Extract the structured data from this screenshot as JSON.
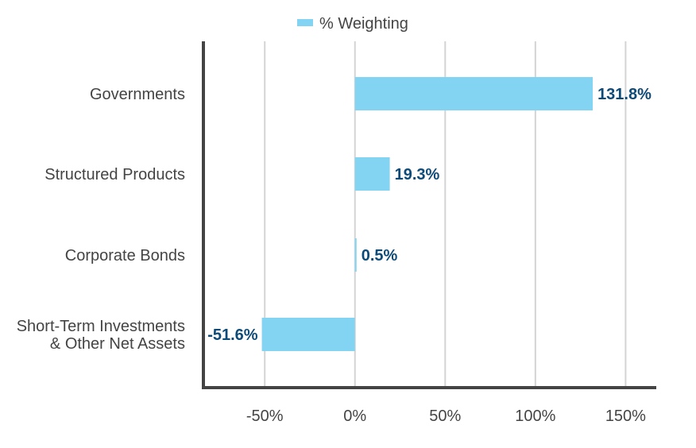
{
  "chart_data": {
    "type": "bar",
    "orientation": "horizontal",
    "categories": [
      [
        "Governments"
      ],
      [
        "Structured Products"
      ],
      [
        "Corporate Bonds"
      ],
      [
        "Short-Term Investments",
        "& Other Net Assets"
      ]
    ],
    "series": [
      {
        "name": "% Weighting",
        "values": [
          131.8,
          19.3,
          0.5,
          -51.6
        ],
        "labels": [
          "131.8%",
          "19.3%",
          "0.5%",
          "-51.6%"
        ]
      }
    ],
    "xticks": [
      -50,
      0,
      50,
      100,
      150
    ],
    "xtick_labels": [
      "-50%",
      "0%",
      "50%",
      "100%",
      "150%"
    ],
    "xlim": [
      -84,
      167
    ],
    "grid": "vertical",
    "legend_position": "top-center",
    "colors": {
      "bar": "#82d4f2",
      "data_label": "#0d4a78",
      "axis": "#444444",
      "grid": "#d4d4d4",
      "text": "#444444"
    }
  }
}
